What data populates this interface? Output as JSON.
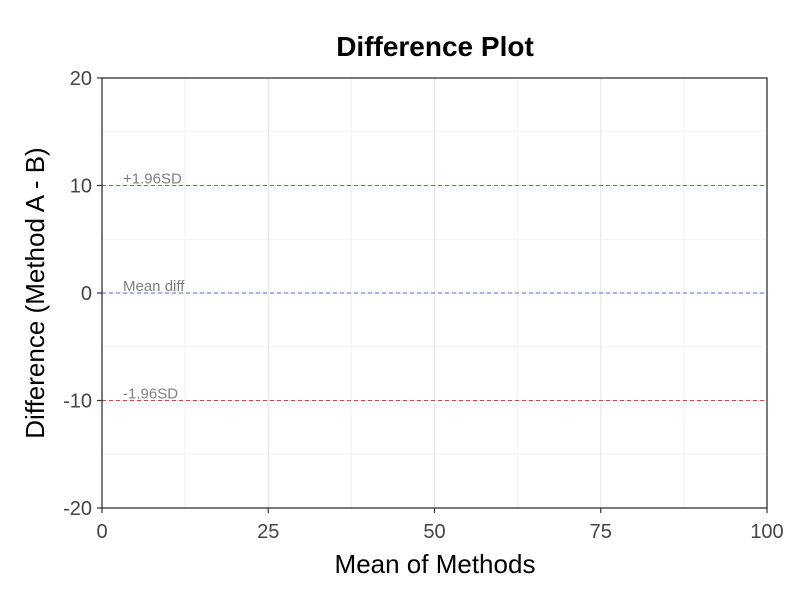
{
  "chart_data": {
    "type": "scatter",
    "title": "Difference Plot",
    "xlabel": "Mean of Methods",
    "ylabel": "Difference (Method A - B)",
    "xlim": [
      0,
      100
    ],
    "ylim": [
      -20,
      20
    ],
    "xticks": [
      0,
      25,
      50,
      75,
      100
    ],
    "yticks": [
      -20,
      -10,
      0,
      10,
      20
    ],
    "grid": true,
    "points": [],
    "reference_lines": [
      {
        "label": "+1.96SD",
        "y": 10,
        "color": "#c0504d",
        "style": "dashed"
      },
      {
        "label": "Mean diff",
        "y": 0,
        "color": "#4f6fbf",
        "style": "dashed"
      },
      {
        "label": "-1.96SD",
        "y": -10,
        "color": "#c0504d",
        "style": "dashed"
      }
    ]
  }
}
